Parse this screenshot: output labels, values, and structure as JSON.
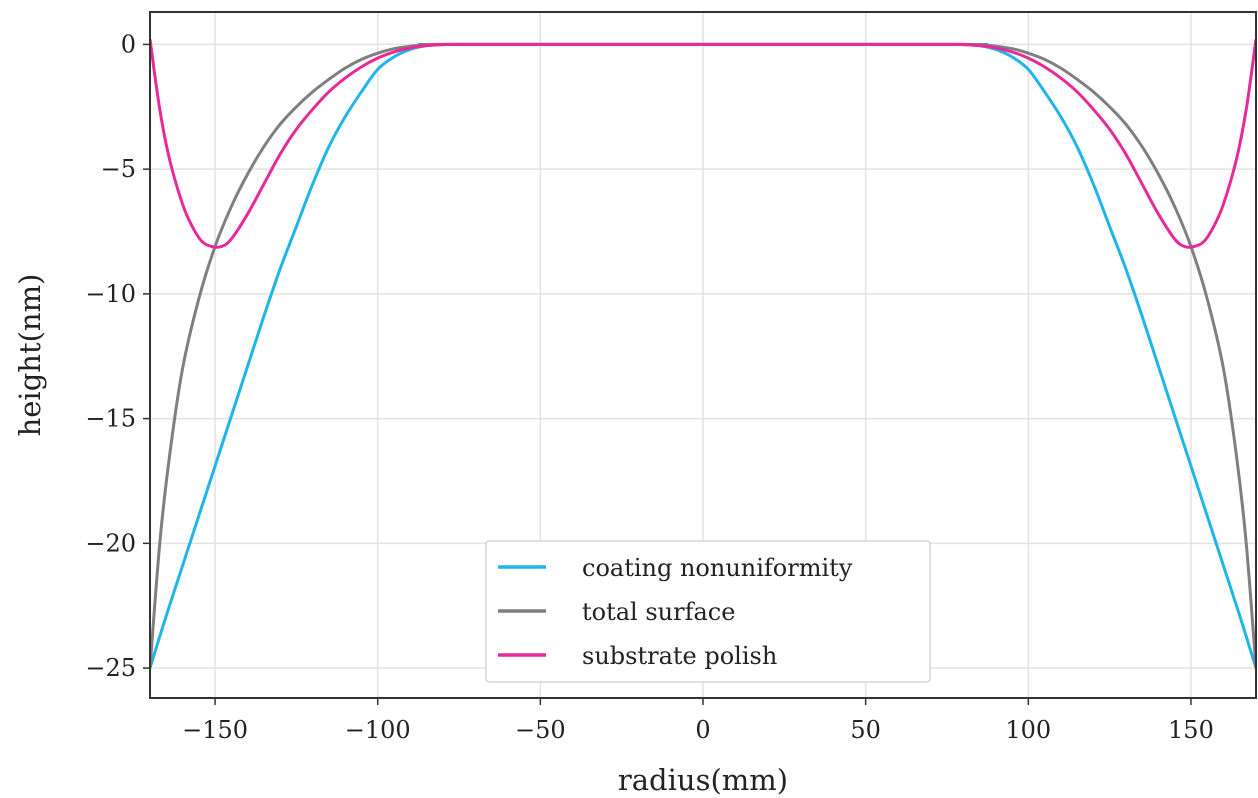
{
  "chart_data": {
    "type": "line",
    "title": "",
    "xlabel": "radius(mm)",
    "ylabel": "height(nm)",
    "xlim": [
      -170,
      170
    ],
    "ylim": [
      -26.2,
      1.3
    ],
    "xticks": [
      -150,
      -100,
      -50,
      0,
      50,
      100,
      150
    ],
    "yticks": [
      0,
      -5,
      -10,
      -15,
      -20,
      -25
    ],
    "xtick_labels": [
      "−150",
      "−100",
      "−50",
      "0",
      "50",
      "100",
      "150"
    ],
    "ytick_labels": [
      "0",
      "−5",
      "−10",
      "−15",
      "−20",
      "−25"
    ],
    "grid": true,
    "legend_position": "bottom-center",
    "series": [
      {
        "name": "coating nonuniformity",
        "color": "#1fb5e8",
        "x": [
          -170,
          -165,
          -160,
          -155,
          -150,
          -145,
          -140,
          -135,
          -130,
          -125,
          -120,
          -115,
          -110,
          -105,
          -100,
          -95,
          -90,
          -85,
          -80,
          -75,
          0,
          75,
          80,
          85,
          90,
          95,
          100,
          105,
          110,
          115,
          120,
          125,
          130,
          135,
          140,
          145,
          150,
          155,
          160,
          165,
          170
        ],
        "y": [
          -25.0,
          -22.9,
          -20.9,
          -18.9,
          -16.9,
          -14.9,
          -12.9,
          -10.9,
          -9.0,
          -7.3,
          -5.6,
          -4.1,
          -2.9,
          -1.9,
          -1.0,
          -0.5,
          -0.2,
          -0.05,
          -0.01,
          0.0,
          0.0,
          0.0,
          -0.01,
          -0.05,
          -0.2,
          -0.5,
          -1.0,
          -1.9,
          -2.9,
          -4.1,
          -5.6,
          -7.3,
          -9.0,
          -10.9,
          -12.9,
          -14.9,
          -16.9,
          -18.9,
          -20.9,
          -22.9,
          -25.0
        ]
      },
      {
        "name": "total surface",
        "color": "#7f7f7f",
        "x": [
          -170,
          -167,
          -164,
          -160,
          -155,
          -150,
          -145,
          -140,
          -135,
          -130,
          -125,
          -120,
          -115,
          -110,
          -105,
          -100,
          -95,
          -90,
          -85,
          -80,
          0,
          80,
          85,
          90,
          95,
          100,
          105,
          110,
          115,
          120,
          125,
          130,
          135,
          140,
          145,
          150,
          155,
          160,
          164,
          167,
          170
        ],
        "y": [
          -25.0,
          -20.0,
          -16.5,
          -13.0,
          -10.2,
          -8.1,
          -6.5,
          -5.2,
          -4.1,
          -3.2,
          -2.5,
          -1.9,
          -1.4,
          -0.95,
          -0.6,
          -0.35,
          -0.17,
          -0.07,
          -0.02,
          0.0,
          0.0,
          0.0,
          -0.02,
          -0.07,
          -0.17,
          -0.35,
          -0.6,
          -0.95,
          -1.4,
          -1.9,
          -2.5,
          -3.2,
          -4.1,
          -5.2,
          -6.5,
          -8.1,
          -10.2,
          -13.0,
          -16.5,
          -20.0,
          -25.0
        ]
      },
      {
        "name": "substrate polish",
        "color": "#e8299a",
        "x": [
          -170,
          -167,
          -164,
          -160,
          -157,
          -154,
          -151,
          -148,
          -145,
          -140,
          -135,
          -130,
          -125,
          -120,
          -115,
          -110,
          -105,
          -100,
          -95,
          -90,
          -85,
          -80,
          -75,
          0,
          75,
          80,
          85,
          90,
          95,
          100,
          105,
          110,
          115,
          120,
          125,
          130,
          135,
          140,
          145,
          148,
          151,
          154,
          157,
          160,
          164,
          167,
          170
        ],
        "y": [
          0.2,
          -2.6,
          -4.6,
          -6.4,
          -7.3,
          -7.9,
          -8.1,
          -8.1,
          -7.8,
          -6.8,
          -5.6,
          -4.4,
          -3.4,
          -2.6,
          -1.9,
          -1.35,
          -0.9,
          -0.55,
          -0.3,
          -0.14,
          -0.05,
          -0.01,
          0.0,
          0.0,
          0.0,
          -0.01,
          -0.05,
          -0.14,
          -0.3,
          -0.55,
          -0.9,
          -1.35,
          -1.9,
          -2.6,
          -3.4,
          -4.4,
          -5.6,
          -6.8,
          -7.8,
          -8.1,
          -8.1,
          -7.9,
          -7.3,
          -6.4,
          -4.6,
          -2.6,
          0.2
        ]
      }
    ]
  }
}
